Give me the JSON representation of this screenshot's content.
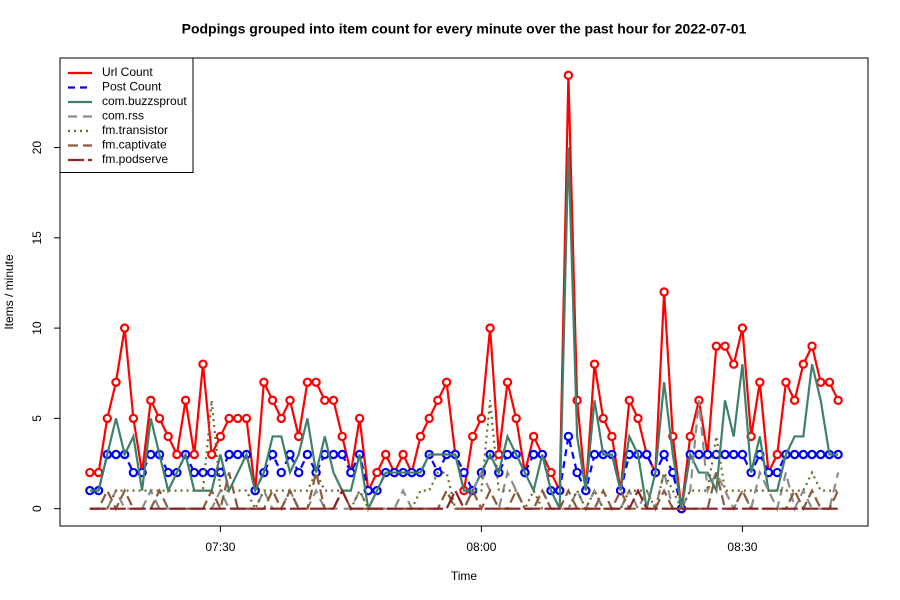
{
  "chart_data": {
    "type": "line",
    "title": "Podpings grouped into item count for every  minute  over the past hour for 2022-07-01",
    "x_label": "Time",
    "y_label": "Items /  minute",
    "x": [
      "07:15",
      "07:16",
      "07:17",
      "07:18",
      "07:19",
      "07:20",
      "07:21",
      "07:22",
      "07:23",
      "07:24",
      "07:25",
      "07:26",
      "07:27",
      "07:28",
      "07:29",
      "07:30",
      "07:31",
      "07:32",
      "07:33",
      "07:34",
      "07:35",
      "07:36",
      "07:37",
      "07:38",
      "07:39",
      "07:40",
      "07:41",
      "07:42",
      "07:43",
      "07:44",
      "07:45",
      "07:46",
      "07:47",
      "07:48",
      "07:49",
      "07:50",
      "07:51",
      "07:52",
      "07:53",
      "07:54",
      "07:55",
      "07:56",
      "07:57",
      "07:58",
      "07:59",
      "08:00",
      "08:01",
      "08:02",
      "08:03",
      "08:04",
      "08:05",
      "08:06",
      "08:07",
      "08:08",
      "08:09",
      "08:10",
      "08:11",
      "08:12",
      "08:13",
      "08:14",
      "08:15",
      "08:16",
      "08:17",
      "08:18",
      "08:19",
      "08:20",
      "08:21",
      "08:22",
      "08:23",
      "08:24",
      "08:25",
      "08:26",
      "08:27",
      "08:28",
      "08:29",
      "08:30",
      "08:31",
      "08:32",
      "08:33",
      "08:34",
      "08:35",
      "08:36",
      "08:37",
      "08:38",
      "08:39",
      "08:40",
      "08:41"
    ],
    "xlim": [
      "07:11:34",
      "08:44:26"
    ],
    "xticks": [
      "07:30",
      "08:00",
      "08:30"
    ],
    "ylim": [
      -0.96,
      24.96
    ],
    "yticks": [
      0,
      5,
      10,
      15,
      20
    ],
    "legend": "topleft",
    "series": [
      {
        "name": "Url Count",
        "color": "#ff0000",
        "dash": "none",
        "markers": true,
        "values": [
          2,
          2,
          5,
          7,
          10,
          5,
          2,
          6,
          5,
          4,
          3,
          6,
          3,
          8,
          3,
          4,
          5,
          5,
          5,
          1,
          7,
          6,
          5,
          6,
          4,
          7,
          7,
          6,
          6,
          4,
          2,
          5,
          1,
          2,
          3,
          2,
          3,
          2,
          4,
          5,
          6,
          7,
          3,
          1,
          4,
          5,
          10,
          3,
          7,
          5,
          2,
          4,
          3,
          2,
          1,
          24,
          6,
          1,
          8,
          5,
          4,
          1,
          6,
          5,
          3,
          2,
          12,
          4,
          0,
          4,
          6,
          3,
          9,
          9,
          8,
          10,
          4,
          7,
          2,
          3,
          7,
          6,
          8,
          9,
          7,
          7,
          6
        ]
      },
      {
        "name": "Post Count",
        "color": "#0000ff",
        "dash": "7,5",
        "markers": true,
        "values": [
          1,
          1,
          3,
          3,
          3,
          2,
          2,
          3,
          3,
          2,
          2,
          3,
          2,
          2,
          2,
          2,
          3,
          3,
          3,
          1,
          2,
          3,
          2,
          3,
          2,
          3,
          2,
          3,
          3,
          3,
          2,
          3,
          1,
          1,
          2,
          2,
          2,
          2,
          2,
          3,
          2,
          3,
          3,
          2,
          1,
          2,
          3,
          2,
          3,
          3,
          2,
          3,
          3,
          1,
          1,
          4,
          2,
          1,
          3,
          3,
          3,
          1,
          3,
          3,
          3,
          2,
          3,
          2,
          0,
          3,
          3,
          3,
          3,
          3,
          3,
          3,
          2,
          3,
          2,
          2,
          3,
          3,
          3,
          3,
          3,
          3,
          3
        ]
      },
      {
        "name": "com.buzzsprout",
        "color": "#3f806b",
        "dash": "none",
        "markers": false,
        "values": [
          1,
          1,
          3,
          5,
          3,
          4,
          1,
          5,
          3,
          1,
          2,
          3,
          1,
          1,
          1,
          3,
          1,
          2,
          3,
          1,
          2,
          4,
          4,
          2,
          3,
          5,
          2,
          4,
          2,
          1,
          1,
          3,
          0,
          1,
          2,
          2,
          2,
          2,
          2,
          3,
          3,
          3,
          3,
          1,
          1,
          2,
          3,
          2,
          4,
          3,
          2,
          1,
          3,
          1,
          0,
          20,
          4,
          1,
          6,
          3,
          3,
          1,
          4,
          3,
          0,
          2,
          7,
          3,
          0,
          3,
          2,
          2,
          1,
          6,
          4,
          8,
          2,
          4,
          1,
          1,
          3,
          4,
          4,
          8,
          6,
          3,
          3
        ]
      },
      {
        "name": "com.rss",
        "color": "#8c8c8c",
        "dash": "9,6",
        "markers": false,
        "values": [
          0,
          0,
          0,
          1,
          0,
          0,
          0,
          1,
          0,
          0,
          0,
          0,
          0,
          0,
          0,
          1,
          0,
          0,
          0,
          0,
          1,
          0,
          0,
          1,
          0,
          0,
          1,
          0,
          0,
          0,
          0,
          1,
          0,
          0,
          0,
          0,
          1,
          0,
          0,
          0,
          0,
          1,
          0,
          0,
          1,
          2,
          1,
          0,
          2,
          1,
          0,
          0,
          1,
          0,
          0,
          0,
          1,
          0,
          1,
          0,
          0,
          0,
          1,
          0,
          1,
          0,
          2,
          0,
          0,
          1,
          6,
          1,
          2,
          1,
          0,
          1,
          0,
          2,
          1,
          0,
          2,
          0,
          1,
          0,
          0,
          0,
          2
        ]
      },
      {
        "name": "fm.transistor",
        "color": "#6b6b2a",
        "dash": "2,4",
        "markers": false,
        "values": [
          0,
          0,
          0,
          1,
          1,
          1,
          1,
          1,
          1,
          1,
          1,
          1,
          1,
          1,
          6,
          1,
          1,
          1,
          1,
          0,
          1,
          1,
          1,
          1,
          1,
          1,
          2,
          1,
          1,
          1,
          0,
          1,
          0,
          0,
          0,
          0,
          0,
          0,
          1,
          1,
          2,
          2,
          0,
          0,
          1,
          1,
          6,
          1,
          1,
          1,
          0,
          1,
          0,
          0,
          0,
          0,
          1,
          0,
          1,
          0,
          0,
          0,
          1,
          1,
          1,
          0,
          2,
          1,
          0,
          1,
          1,
          1,
          4,
          1,
          1,
          1,
          1,
          1,
          1,
          1,
          1,
          1,
          1,
          2,
          1,
          1,
          1
        ]
      },
      {
        "name": "fm.captivate",
        "color": "#8b5a3c",
        "dash": "10,5",
        "markers": false,
        "values": [
          0,
          0,
          1,
          0,
          1,
          0,
          0,
          0,
          1,
          0,
          0,
          0,
          0,
          0,
          1,
          0,
          2,
          0,
          0,
          0,
          0,
          1,
          0,
          1,
          0,
          0,
          2,
          0,
          0,
          1,
          0,
          0,
          0,
          0,
          0,
          0,
          0,
          0,
          0,
          0,
          0,
          1,
          0,
          0,
          1,
          0,
          1,
          0,
          0,
          1,
          0,
          0,
          1,
          0,
          0,
          1,
          0,
          0,
          0,
          1,
          0,
          1,
          0,
          0,
          0,
          0,
          1,
          0,
          0,
          0,
          0,
          0,
          2,
          0,
          0,
          1,
          0,
          0,
          0,
          0,
          0,
          1,
          0,
          1,
          0,
          0,
          1
        ]
      },
      {
        "name": "fm.podserve",
        "color": "#8b2323",
        "dash": "16,4",
        "markers": false,
        "values": [
          0,
          0,
          0,
          0,
          0,
          0,
          0,
          0,
          0,
          0,
          0,
          0,
          0,
          0,
          0,
          0,
          0,
          0,
          0,
          0,
          0,
          0,
          0,
          0,
          0,
          0,
          0,
          0,
          0,
          1,
          0,
          0,
          0,
          0,
          0,
          0,
          0,
          0,
          0,
          0,
          0,
          0,
          1,
          0,
          0,
          0,
          0,
          0,
          0,
          0,
          0,
          0,
          0,
          0,
          0,
          0,
          0,
          0,
          0,
          0,
          0,
          0,
          0,
          1,
          0,
          0,
          0,
          0,
          0,
          0,
          0,
          0,
          0,
          0,
          0,
          0,
          0,
          0,
          0,
          0,
          0,
          0,
          0,
          0,
          0,
          0,
          0
        ]
      }
    ]
  }
}
